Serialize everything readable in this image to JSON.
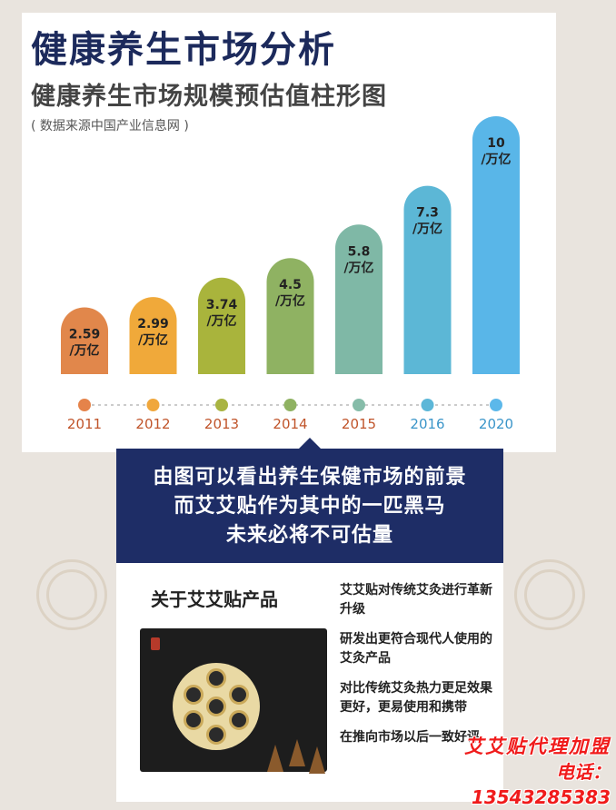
{
  "header": {
    "title": "健康养生市场分析",
    "subtitle": "健康养生市场规模预估值柱形图",
    "source": "( 数据来源中国产业信息网 )"
  },
  "chart_data": {
    "type": "bar",
    "categories": [
      "2011",
      "2012",
      "2013",
      "2014",
      "2015",
      "2016",
      "2020"
    ],
    "values": [
      2.59,
      2.99,
      3.74,
      4.5,
      5.8,
      7.3,
      10
    ],
    "value_labels": [
      "2.59",
      "2.99",
      "3.74",
      "4.5",
      "5.8",
      "7.3",
      "10"
    ],
    "unit_label": "/万亿",
    "title": "健康养生市场规模预估值柱形图",
    "xlabel": "",
    "ylabel": "",
    "ylim": [
      0,
      10
    ],
    "grid": false,
    "colors": [
      "#e1874b",
      "#f0a93a",
      "#a9b43c",
      "#8fb262",
      "#7fb8a6",
      "#5cb7d6",
      "#59b6e8"
    ],
    "dot_colors": [
      "#e5834a",
      "#f0a73c",
      "#a9b442",
      "#8fb262",
      "#86bca9",
      "#5cb7d8",
      "#5cb8ea"
    ]
  },
  "conclusion": {
    "lines": [
      "由图可以看出养生保健市场的前景",
      "而艾艾贴作为其中的一匹黑马",
      "未来必将不可估量"
    ]
  },
  "product": {
    "title": "关于艾艾贴产品",
    "features": [
      "艾艾贴对传统艾灸进行革新升级",
      "研发出更符合现代人使用的艾灸产品",
      "对比传统艾灸热力更足效果更好，更易使用和携带",
      "在推向市场以后一致好评"
    ]
  },
  "watermark": {
    "line1": "艾艾贴代理加盟",
    "line2": "电话：13543285383"
  }
}
